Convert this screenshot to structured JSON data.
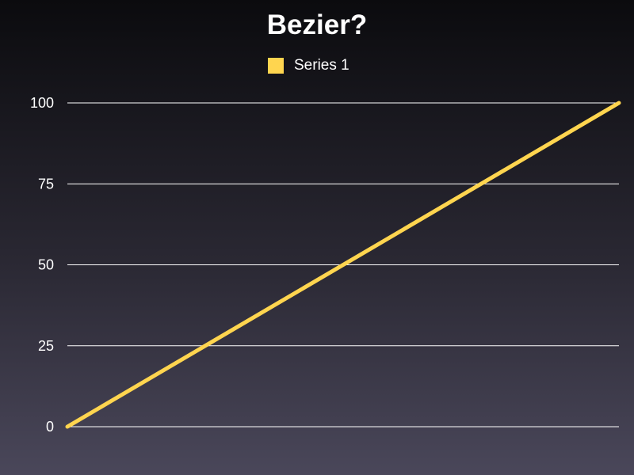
{
  "chart_data": {
    "type": "line",
    "title": "Bezier?",
    "xlabel": "",
    "ylabel": "",
    "ylim": [
      0,
      100
    ],
    "yticks": [
      "0",
      "25",
      "50",
      "75",
      "100"
    ],
    "grid": true,
    "legend_position": "top-center",
    "series": [
      {
        "name": "Series 1",
        "color": "#ffd54f",
        "x": [
          0,
          1
        ],
        "y": [
          0,
          100
        ]
      }
    ]
  }
}
